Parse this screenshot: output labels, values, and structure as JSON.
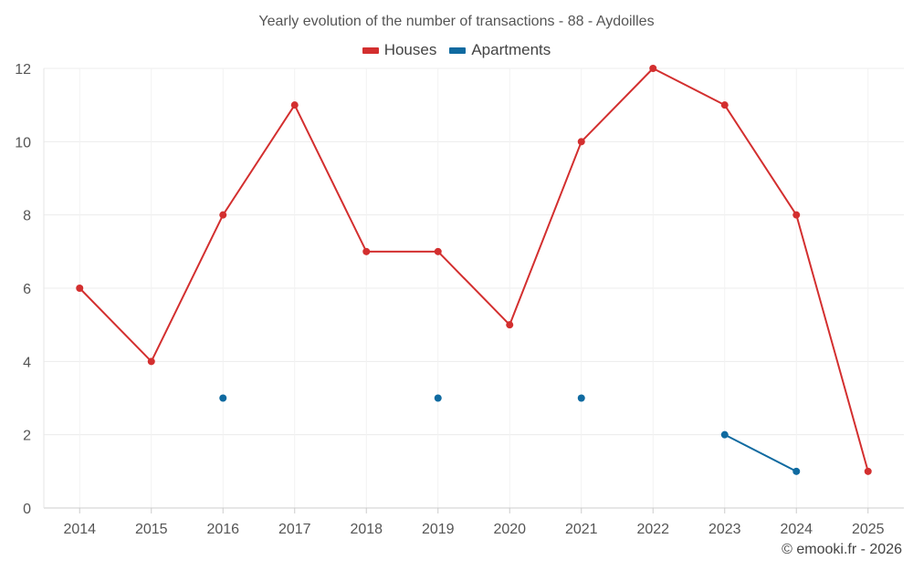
{
  "chart_data": {
    "type": "line",
    "title": "Yearly evolution of the number of transactions - 88 - Aydoilles",
    "categories": [
      "2014",
      "2015",
      "2016",
      "2017",
      "2018",
      "2019",
      "2020",
      "2021",
      "2022",
      "2023",
      "2024",
      "2025"
    ],
    "series": [
      {
        "name": "Houses",
        "color": "#d32f2f",
        "values": [
          6,
          4,
          8,
          11,
          7,
          7,
          5,
          10,
          12,
          11,
          8,
          1
        ]
      },
      {
        "name": "Apartments",
        "color": "#0f6aa0",
        "values": [
          null,
          null,
          3,
          null,
          null,
          3,
          null,
          3,
          null,
          2,
          1,
          null
        ]
      }
    ],
    "ylim": [
      0,
      12
    ],
    "yticks": [
      0,
      2,
      4,
      6,
      8,
      10,
      12
    ],
    "grid": true,
    "legend_position": "top-center",
    "credit": "© emooki.fr - 2026"
  }
}
